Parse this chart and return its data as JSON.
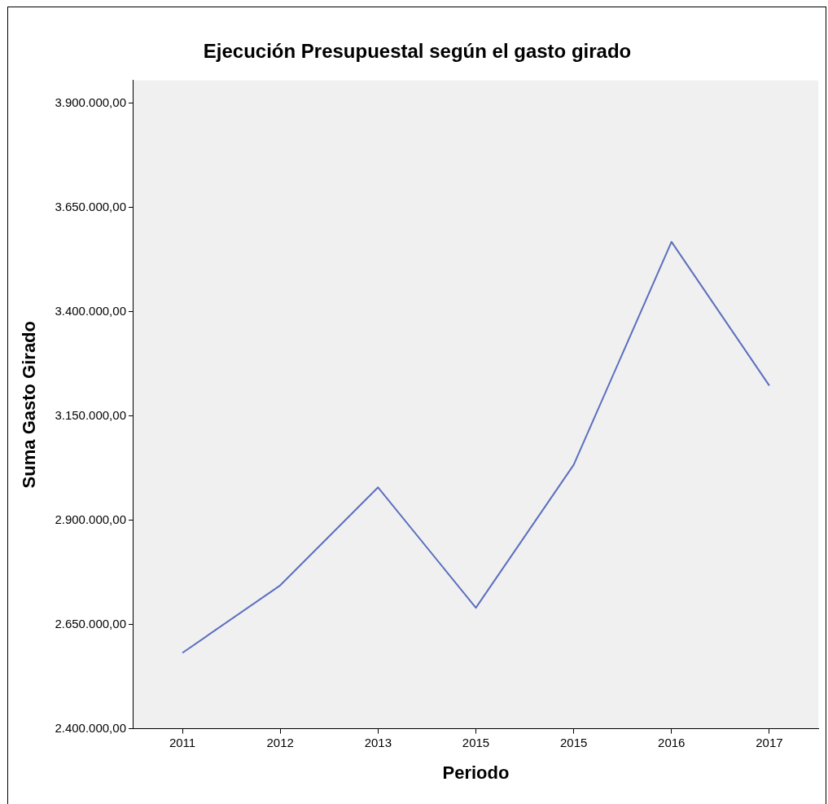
{
  "chart_data": {
    "type": "line",
    "title": "Ejecución Presupuestal según el gasto girado",
    "xlabel": "Periodo",
    "ylabel": "Suma Gasto Girado",
    "categories": [
      "2011",
      "2012",
      "2013",
      "2015",
      "2015",
      "2016",
      "2017"
    ],
    "series": [
      {
        "color": "#5b6fbf",
        "values": [
          2582000,
          2744000,
          2979000,
          2690000,
          3033000,
          3568000,
          3223000
        ]
      }
    ],
    "ylim": [
      2400000,
      3955000
    ],
    "yticks": [
      {
        "value": 2400000,
        "label": "2.400.000,00"
      },
      {
        "value": 2650000,
        "label": "2.650.000,00"
      },
      {
        "value": 2900000,
        "label": "2.900.000,00"
      },
      {
        "value": 3150000,
        "label": "3.150.000,00"
      },
      {
        "value": 3400000,
        "label": "3.400.000,00"
      },
      {
        "value": 3650000,
        "label": "3.650.000,00"
      },
      {
        "value": 3900000,
        "label": "3.900.000,00"
      }
    ],
    "grid": false,
    "legend": false,
    "marker": "none",
    "line_style": "solid"
  }
}
